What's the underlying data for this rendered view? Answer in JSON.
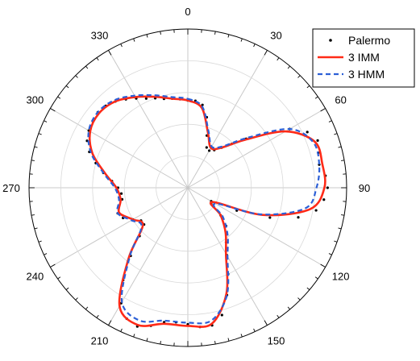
{
  "chart_data": {
    "type": "polar",
    "angle_unit": "degrees",
    "angle_zero": "top",
    "angle_direction": "clockwise",
    "angle_ticks": [
      0,
      30,
      60,
      90,
      120,
      150,
      180,
      210,
      240,
      270,
      300,
      330
    ],
    "angle_tick_labels": [
      "0",
      "30",
      "60",
      "90",
      "120",
      "150",
      "180",
      "210",
      "240",
      "270",
      "300",
      "330"
    ],
    "radial_range": [
      0,
      1
    ],
    "radial_grid": [
      0.2,
      0.4,
      0.6,
      0.8,
      1.0
    ],
    "grid": true,
    "legend_position": "top-right",
    "series": [
      {
        "name": "Palermo",
        "style": "points",
        "color": "#000000",
        "theta": [
          0,
          5,
          10,
          15,
          20,
          25,
          30,
          35,
          40,
          45,
          50,
          55,
          60,
          65,
          70,
          75,
          80,
          85,
          90,
          95,
          100,
          105,
          110,
          115,
          120,
          125,
          130,
          135,
          140,
          145,
          150,
          155,
          160,
          165,
          170,
          175,
          180,
          185,
          190,
          195,
          200,
          205,
          210,
          215,
          220,
          225,
          230,
          235,
          240,
          245,
          250,
          255,
          260,
          265,
          270,
          275,
          280,
          285,
          290,
          295,
          300,
          305,
          310,
          315,
          320,
          325,
          330,
          335,
          340,
          345,
          350,
          355
        ],
        "r": [
          0.55,
          0.55,
          0.53,
          0.46,
          0.35,
          0.28,
          0.27,
          0.29,
          0.33,
          0.39,
          0.48,
          0.6,
          0.74,
          0.83,
          0.87,
          0.85,
          0.84,
          0.87,
          0.88,
          0.86,
          0.82,
          0.72,
          0.55,
          0.34,
          0.17,
          0.18,
          0.27,
          0.34,
          0.38,
          0.42,
          0.49,
          0.6,
          0.72,
          0.83,
          0.88,
          0.88,
          0.86,
          0.85,
          0.86,
          0.9,
          0.93,
          0.91,
          0.84,
          0.71,
          0.56,
          0.43,
          0.36,
          0.36,
          0.4,
          0.45,
          0.47,
          0.45,
          0.42,
          0.42,
          0.44,
          0.48,
          0.54,
          0.6,
          0.66,
          0.7,
          0.72,
          0.73,
          0.74,
          0.73,
          0.71,
          0.68,
          0.65,
          0.62,
          0.6,
          0.58,
          0.57,
          0.56
        ]
      },
      {
        "name": "3 IMM",
        "style": "solid",
        "color": "#ff2a17",
        "theta": [
          0,
          10,
          20,
          30,
          40,
          50,
          60,
          70,
          80,
          90,
          100,
          110,
          120,
          130,
          140,
          150,
          160,
          170,
          180,
          190,
          200,
          210,
          220,
          230,
          240,
          250,
          260,
          270,
          280,
          290,
          300,
          310,
          320,
          330,
          340,
          350,
          360
        ],
        "r": [
          0.55,
          0.51,
          0.37,
          0.29,
          0.33,
          0.47,
          0.71,
          0.85,
          0.86,
          0.86,
          0.78,
          0.5,
          0.18,
          0.27,
          0.37,
          0.48,
          0.71,
          0.87,
          0.87,
          0.87,
          0.92,
          0.86,
          0.58,
          0.37,
          0.4,
          0.46,
          0.43,
          0.45,
          0.53,
          0.64,
          0.71,
          0.73,
          0.71,
          0.66,
          0.61,
          0.57,
          0.55
        ]
      },
      {
        "name": "3 HMM",
        "style": "dashed",
        "color": "#2c5fd6",
        "theta": [
          0,
          10,
          20,
          30,
          40,
          50,
          60,
          70,
          80,
          90,
          100,
          110,
          120,
          130,
          140,
          150,
          160,
          170,
          180,
          190,
          200,
          210,
          220,
          230,
          240,
          250,
          260,
          270,
          280,
          290,
          300,
          310,
          320,
          330,
          340,
          350,
          360
        ],
        "r": [
          0.56,
          0.52,
          0.38,
          0.3,
          0.34,
          0.49,
          0.74,
          0.84,
          0.84,
          0.81,
          0.75,
          0.49,
          0.2,
          0.29,
          0.39,
          0.5,
          0.72,
          0.85,
          0.85,
          0.85,
          0.89,
          0.83,
          0.57,
          0.38,
          0.41,
          0.47,
          0.44,
          0.46,
          0.54,
          0.65,
          0.72,
          0.74,
          0.72,
          0.67,
          0.62,
          0.58,
          0.56
        ]
      }
    ]
  }
}
